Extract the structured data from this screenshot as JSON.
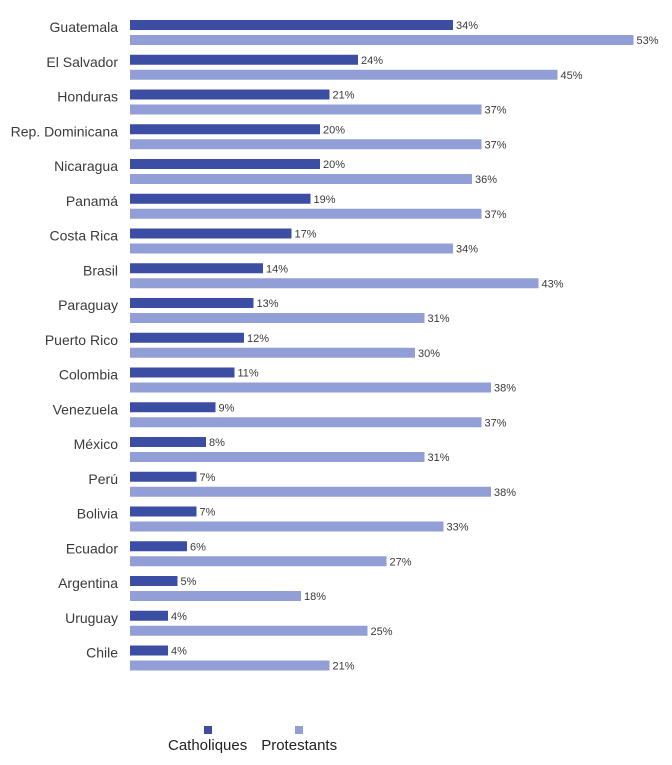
{
  "chart_data": {
    "type": "bar",
    "orientation": "horizontal",
    "categories": [
      "Guatemala",
      "El Salvador",
      "Honduras",
      "Rep. Dominicana",
      "Nicaragua",
      "Panamá",
      "Costa Rica",
      "Brasil",
      "Paraguay",
      "Puerto Rico",
      "Colombia",
      "Venezuela",
      "México",
      "Perú",
      "Bolivia",
      "Ecuador",
      "Argentina",
      "Uruguay",
      "Chile"
    ],
    "series": [
      {
        "name": "Catholiques",
        "color": "#3b4ea3",
        "values": [
          34,
          24,
          21,
          20,
          20,
          19,
          17,
          14,
          13,
          12,
          11,
          9,
          8,
          7,
          7,
          6,
          5,
          4,
          4
        ]
      },
      {
        "name": "Protestants",
        "color": "#929fd6",
        "values": [
          53,
          45,
          37,
          37,
          36,
          37,
          34,
          43,
          31,
          30,
          38,
          37,
          31,
          38,
          33,
          27,
          18,
          25,
          21
        ]
      }
    ],
    "value_suffix": "%",
    "xlim": [
      0,
      55
    ],
    "grid": false,
    "legend_position": "bottom-center"
  }
}
